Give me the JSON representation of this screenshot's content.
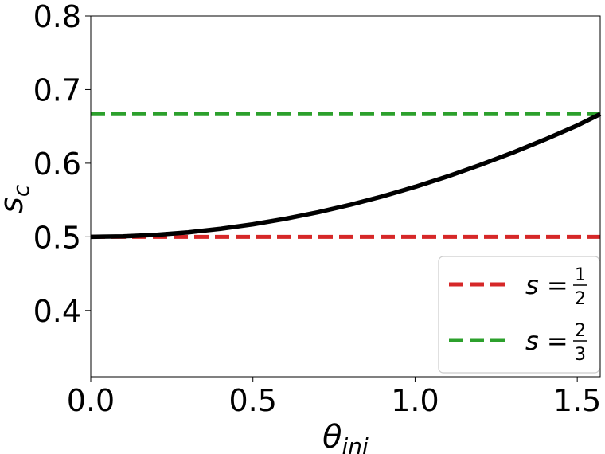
{
  "chart_data": {
    "type": "line",
    "xlabel": "θ",
    "xlabel_sub": "ini",
    "ylabel": "s",
    "ylabel_sub": "c",
    "xlim": [
      0.0,
      1.5708
    ],
    "ylim": [
      0.31,
      0.8
    ],
    "xticks": [
      0.0,
      0.5,
      1.0,
      1.5
    ],
    "xtick_labels": [
      "0.0",
      "0.5",
      "1.0",
      "1.5"
    ],
    "yticks": [
      0.4,
      0.5,
      0.6,
      0.7,
      0.8
    ],
    "ytick_labels": [
      "0.4",
      "0.5",
      "0.6",
      "0.7",
      "0.8"
    ],
    "grid": false,
    "legend_position": "bottom-right",
    "series": [
      {
        "color": "#000000",
        "style": "solid",
        "x": [
          0.0,
          0.1,
          0.2,
          0.3,
          0.4,
          0.5,
          0.6,
          0.7,
          0.8,
          0.9,
          1.0,
          1.1,
          1.2,
          1.3,
          1.4,
          1.5,
          1.5708
        ],
        "y": [
          0.5,
          0.5007,
          0.5027,
          0.5061,
          0.5109,
          0.517,
          0.5245,
          0.5333,
          0.5435,
          0.555,
          0.5679,
          0.582,
          0.5975,
          0.6142,
          0.6321,
          0.6512,
          0.6667
        ]
      },
      {
        "name": "s = 1/2",
        "legend_label": {
          "lhs": "s =",
          "num": "1",
          "den": "2"
        },
        "color": "#d62728",
        "style": "dashed",
        "x": [
          0.0,
          1.5708
        ],
        "y": [
          0.5,
          0.5
        ]
      },
      {
        "name": "s = 2/3",
        "legend_label": {
          "lhs": "s =",
          "num": "2",
          "den": "3"
        },
        "color": "#2ca02c",
        "style": "dashed",
        "x": [
          0.0,
          1.5708
        ],
        "y": [
          0.6667,
          0.6667
        ]
      }
    ]
  }
}
